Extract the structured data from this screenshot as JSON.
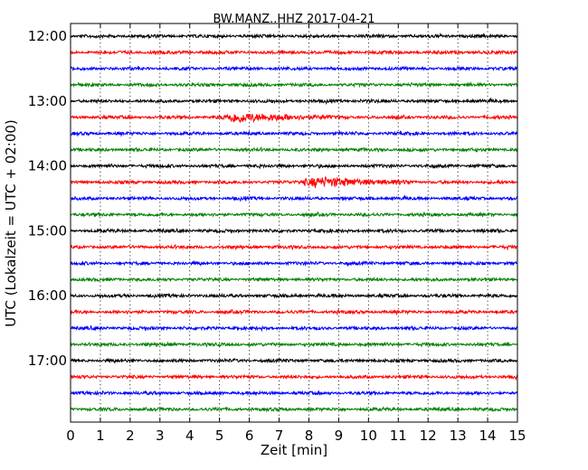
{
  "chart_data": {
    "type": "line",
    "title": "BW.MANZ..HHZ 2017-04-21",
    "xlabel": "Zeit  [min]",
    "ylabel": "UTC (Lokalzeit = UTC + 02:00)",
    "xlim": [
      0,
      15
    ],
    "x_ticks": [
      "0",
      "1",
      "2",
      "3",
      "4",
      "5",
      "6",
      "7",
      "8",
      "9",
      "10",
      "11",
      "12",
      "13",
      "14",
      "15"
    ],
    "y_tick_labels": [
      "12:00",
      "13:00",
      "14:00",
      "15:00",
      "16:00",
      "17:00"
    ],
    "grid": "vertical dotted",
    "start_time": "12:00",
    "trace_interval_minutes": 15,
    "trace_count": 24,
    "trace_colors": [
      "#000000",
      "#ff0000",
      "#0000ff",
      "#008000"
    ],
    "events": [
      {
        "trace_start": "13:15",
        "x_from_min": 5.0,
        "x_to_min": 8.7,
        "description": "elevated amplitude wave train"
      },
      {
        "trace_start": "14:15",
        "x_from_min": 7.6,
        "x_to_min": 11.6,
        "description": "earthquake signal"
      }
    ]
  }
}
